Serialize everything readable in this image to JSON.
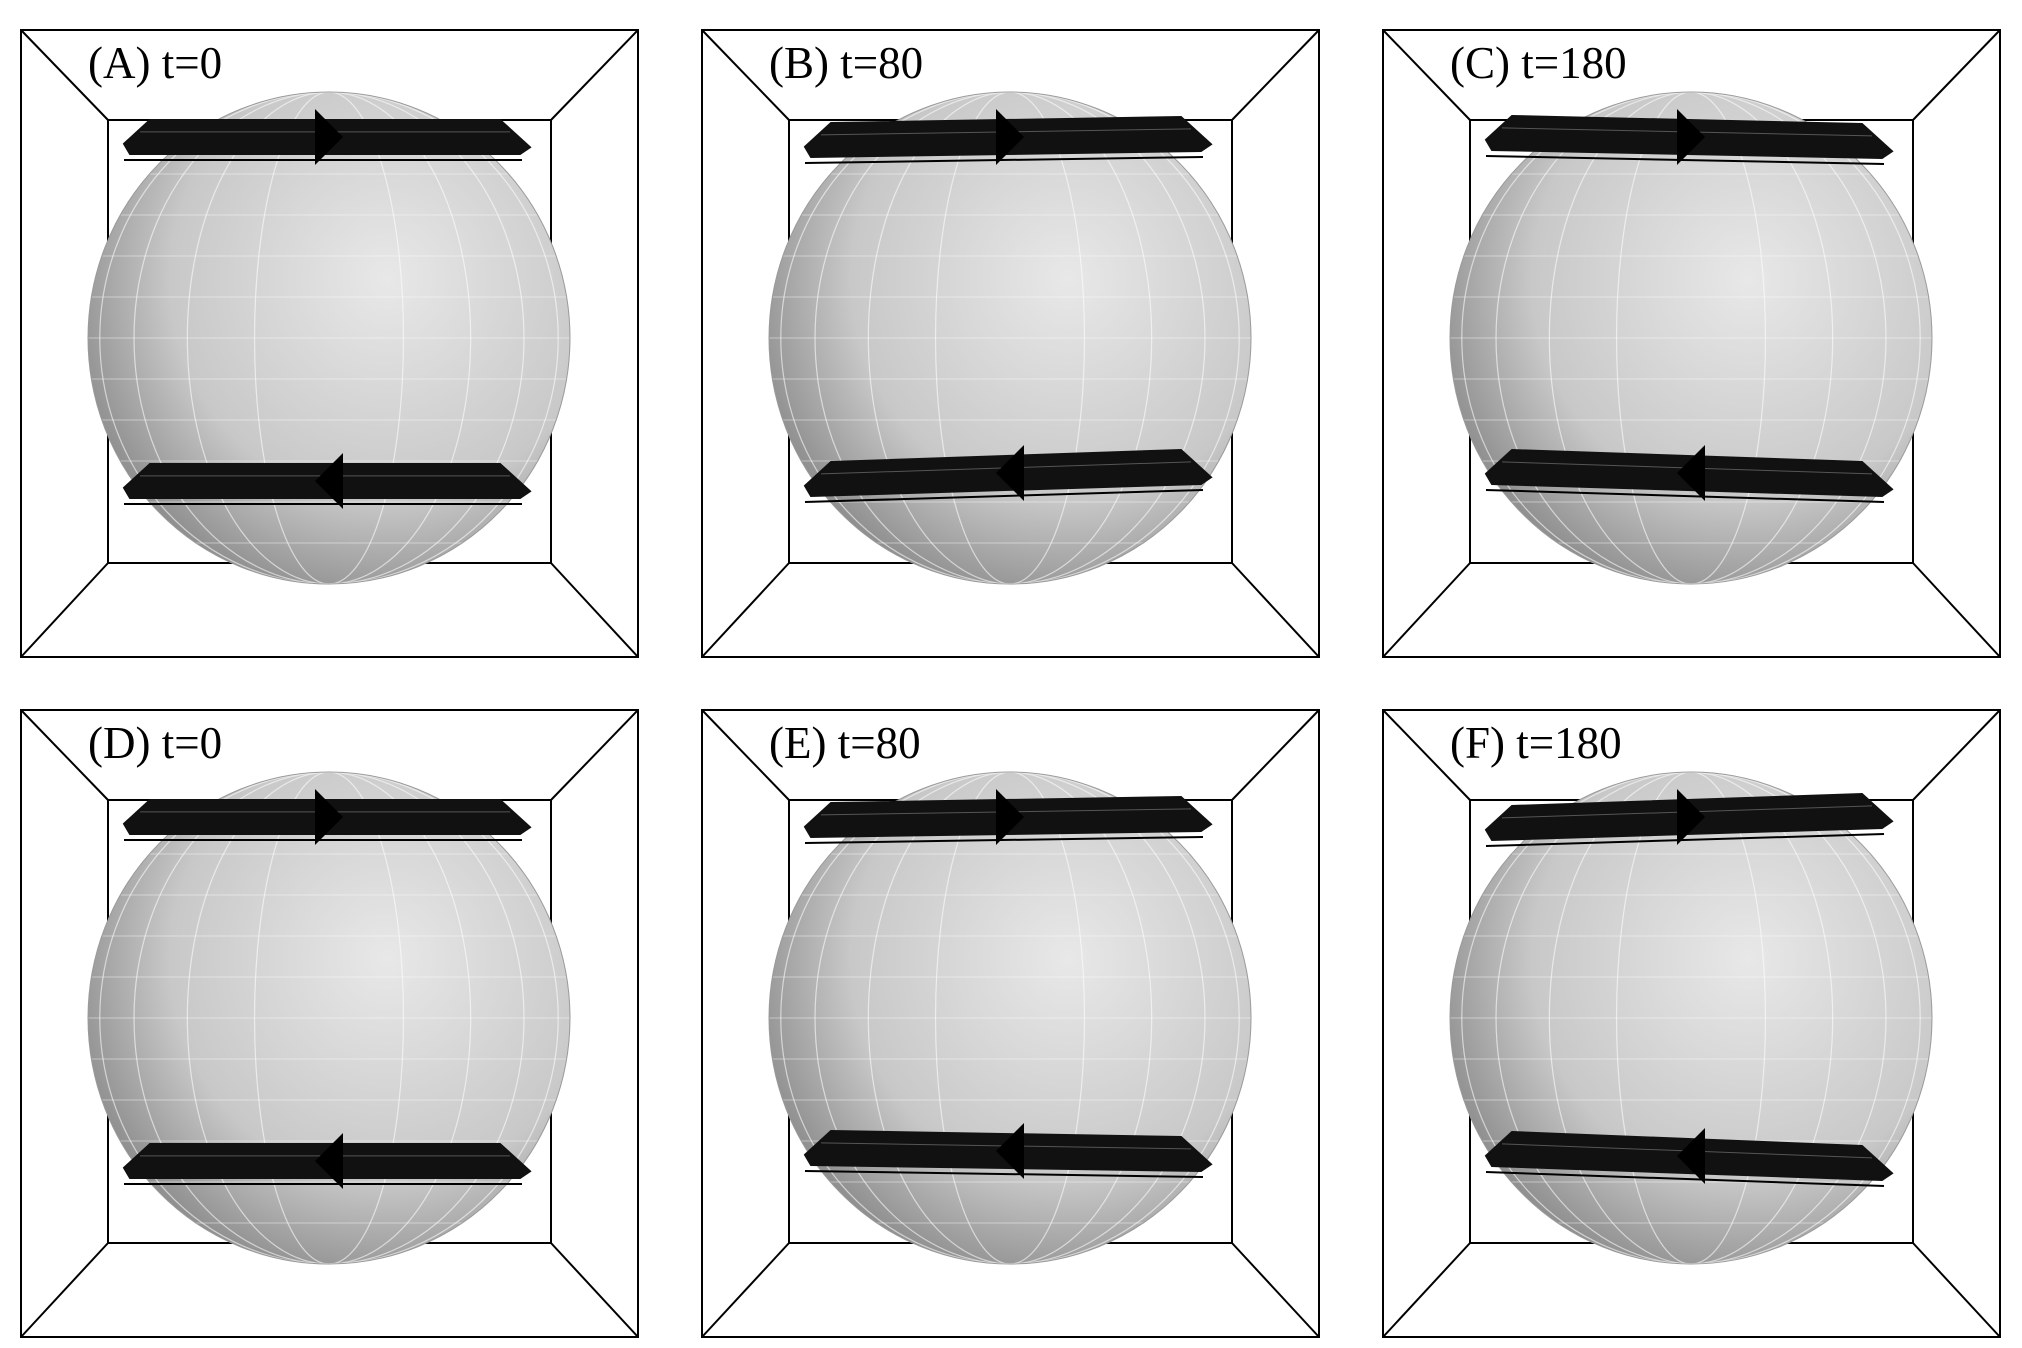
{
  "panels": [
    {
      "label": "(A) t=0",
      "tilt_top": 0,
      "tilt_bottom": 0,
      "bottom_shift": 0
    },
    {
      "label": "(B) t=80",
      "tilt_top": -3,
      "tilt_bottom": -6,
      "bottom_shift": -8
    },
    {
      "label": "(C) t=180",
      "tilt_top": 4,
      "tilt_bottom": 6,
      "bottom_shift": -8
    },
    {
      "label": "(D) t=0",
      "tilt_top": 0,
      "tilt_bottom": 0,
      "bottom_shift": 0
    },
    {
      "label": "(E) t=80",
      "tilt_top": -3,
      "tilt_bottom": 3,
      "bottom_shift": -10
    },
    {
      "label": "(F) t=180",
      "tilt_top": -6,
      "tilt_bottom": 7,
      "bottom_shift": -5
    }
  ],
  "colors": {
    "frame": "#000000",
    "band": "#111111",
    "sphere_light": "#e8e8e8",
    "sphere_dark": "#7a7a7a"
  }
}
